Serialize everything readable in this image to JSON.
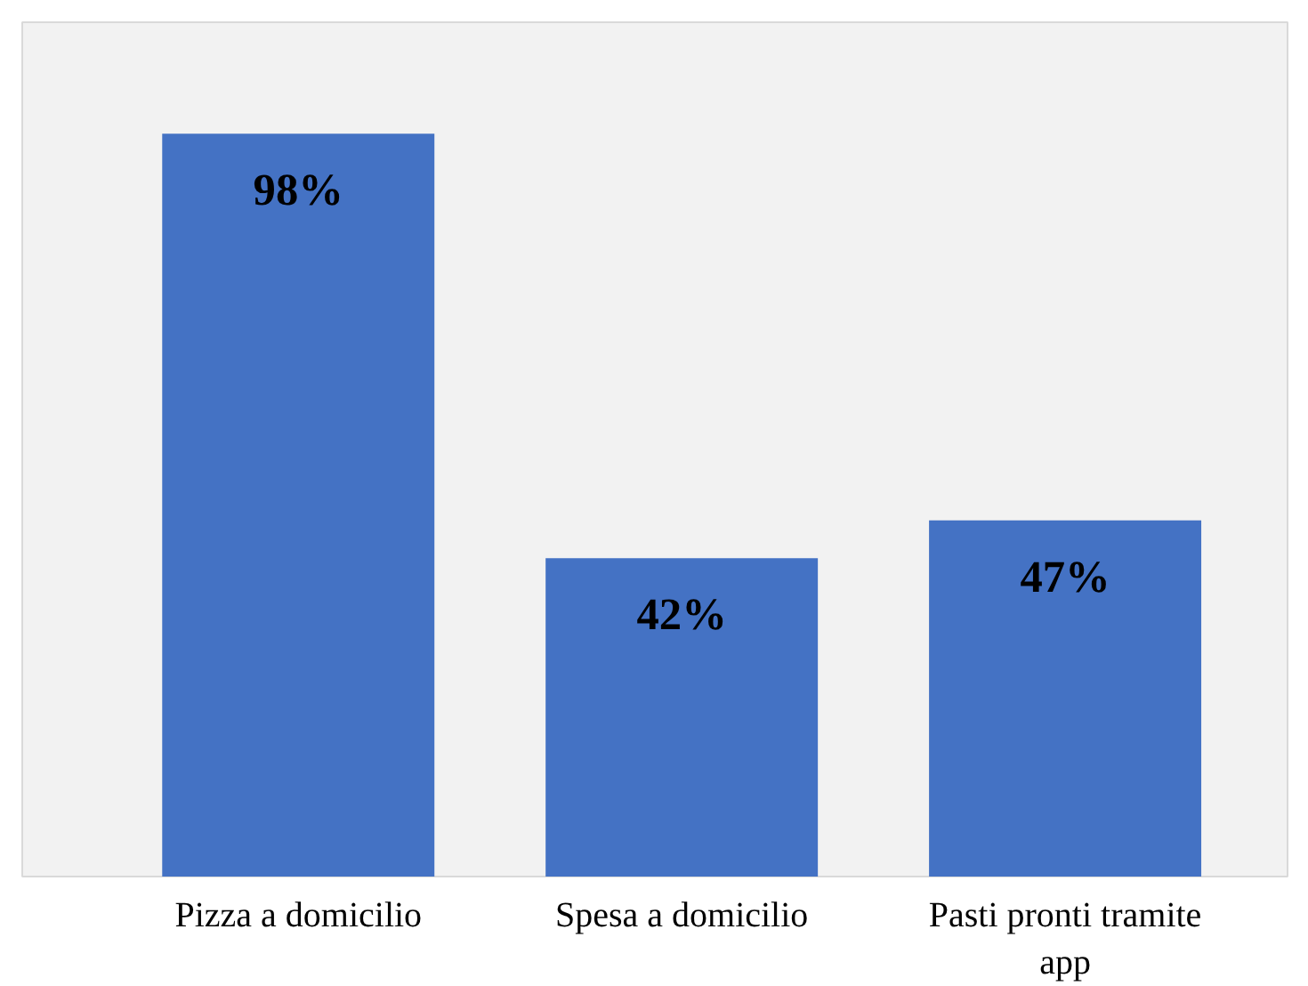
{
  "chart_data": {
    "type": "bar",
    "categories": [
      "Pizza a domicilio",
      "Spesa a domicilio",
      "Pasti pronti tramite app"
    ],
    "values": [
      98,
      42,
      47
    ],
    "value_labels": [
      "98%",
      "42%",
      "47%"
    ],
    "color": "#4472c4"
  }
}
